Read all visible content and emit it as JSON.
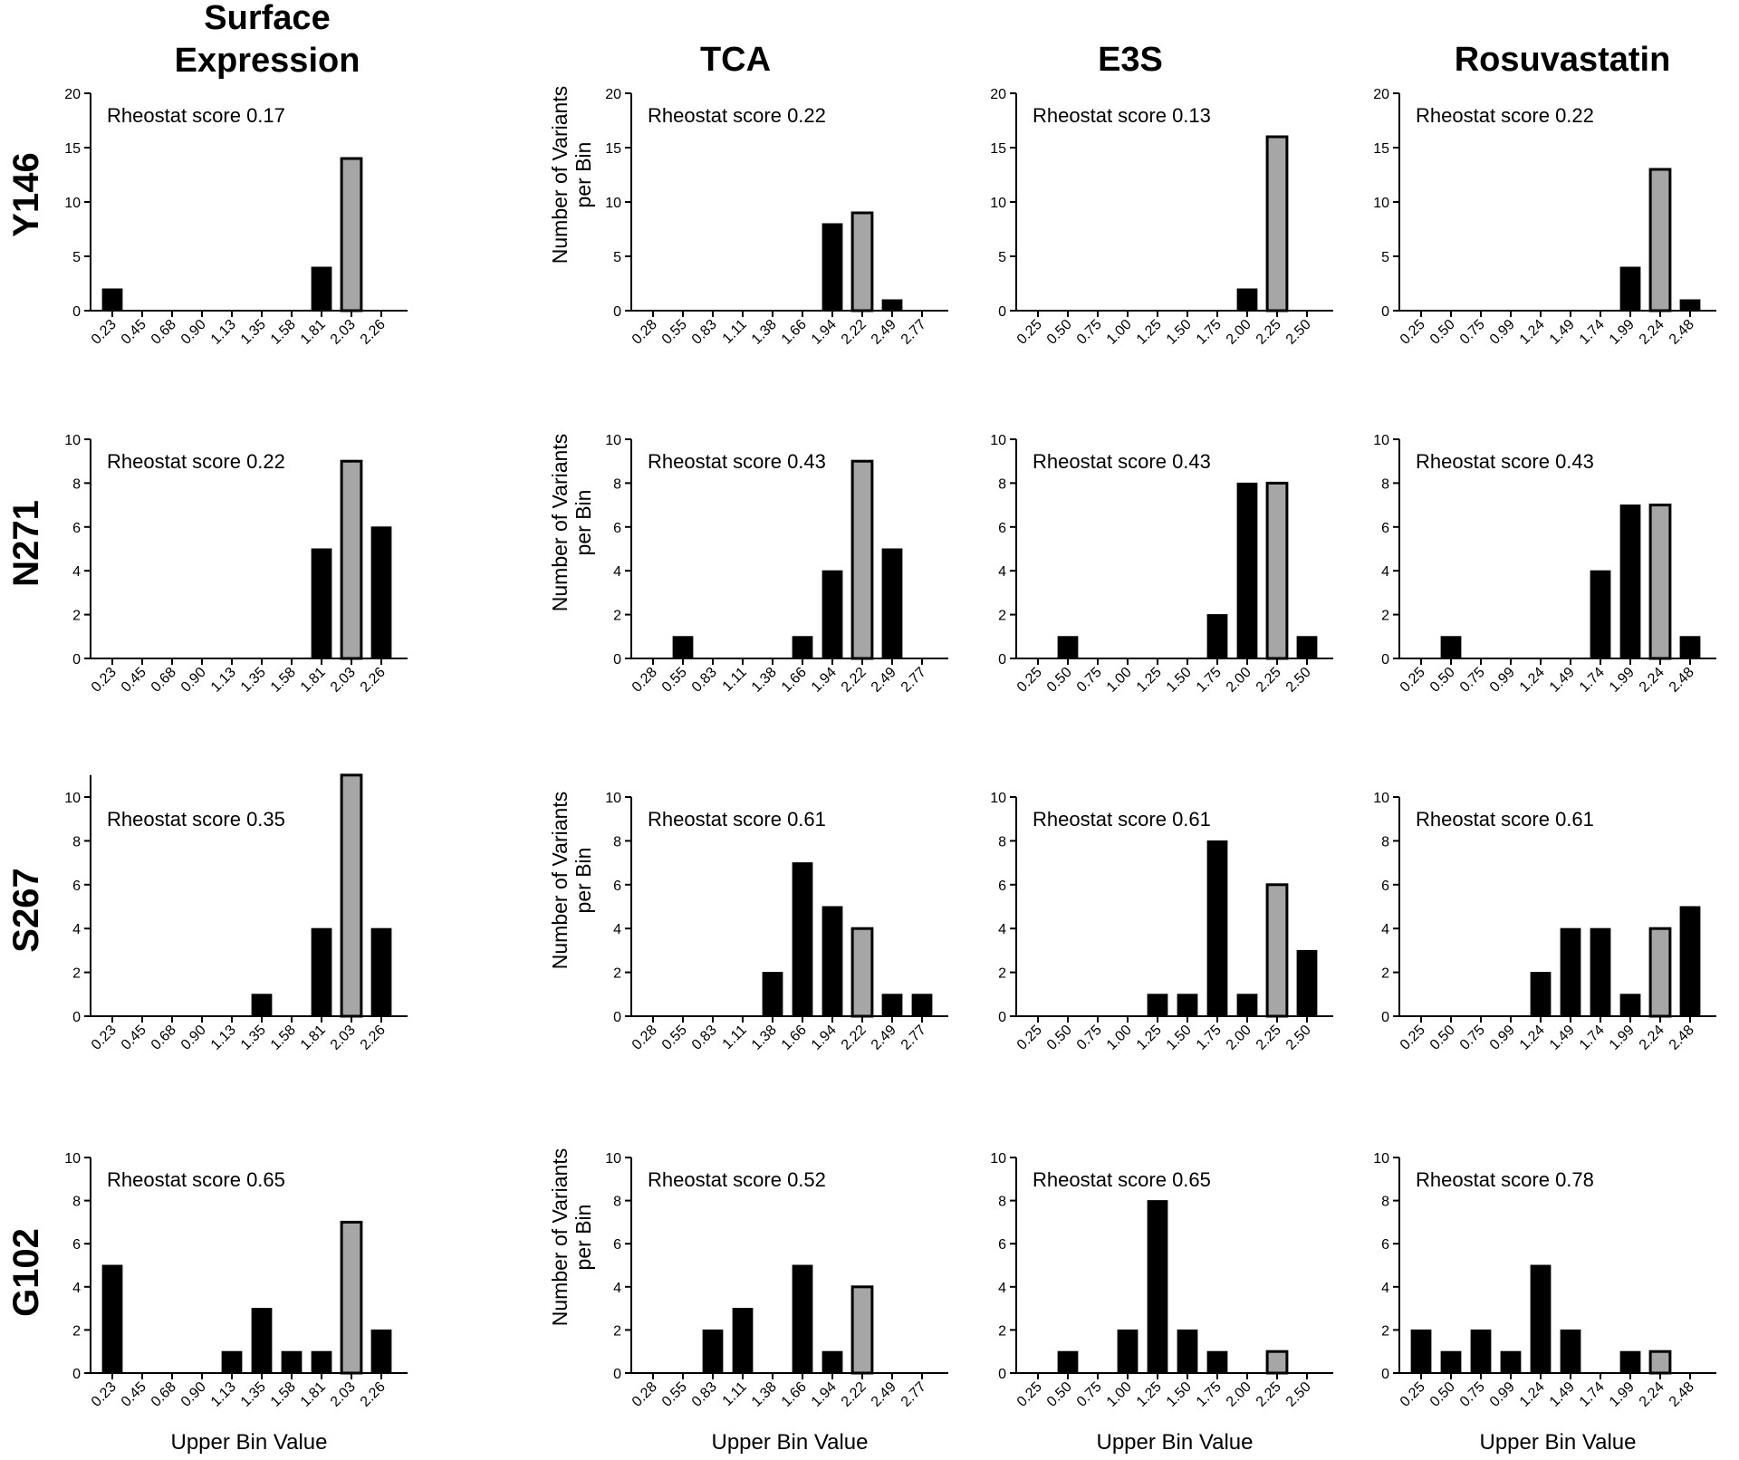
{
  "column_titles": [
    [
      "Surface",
      "Expression"
    ],
    [
      "TCA"
    ],
    [
      "E3S"
    ],
    [
      "Rosuvastatin"
    ]
  ],
  "row_labels": [
    "Y146",
    "N271",
    "S267",
    "G102"
  ],
  "common_ylabel": [
    "Number of Variants",
    "per Bin"
  ],
  "common_xlabel": "Upper Bin Value",
  "colors": {
    "bar_fill": "#000000",
    "highlight_fill": "#a6a6a6",
    "axis": "#000000"
  },
  "chart_data": [
    {
      "type": "bar",
      "row": "Y146",
      "column": "Surface Expression",
      "annotation": "Rheostat score 0.17",
      "categories": [
        "0.23",
        "0.45",
        "0.68",
        "0.90",
        "1.13",
        "1.35",
        "1.58",
        "1.81",
        "2.03",
        "2.26"
      ],
      "values": [
        2,
        0,
        0,
        0,
        0,
        0,
        0,
        4,
        14,
        0
      ],
      "highlight_category": "2.03",
      "ylim": [
        0,
        20
      ],
      "yticks": [
        0,
        5,
        10,
        15,
        20
      ]
    },
    {
      "type": "bar",
      "row": "Y146",
      "column": "TCA",
      "annotation": "Rheostat score 0.22",
      "categories": [
        "0.28",
        "0.55",
        "0.83",
        "1.11",
        "1.38",
        "1.66",
        "1.94",
        "2.22",
        "2.49",
        "2.77"
      ],
      "values": [
        0,
        0,
        0,
        0,
        0,
        0,
        8,
        9,
        1,
        0
      ],
      "highlight_category": "2.22",
      "ylim": [
        0,
        20
      ],
      "yticks": [
        0,
        5,
        10,
        15,
        20
      ]
    },
    {
      "type": "bar",
      "row": "Y146",
      "column": "E3S",
      "annotation": "Rheostat score 0.13",
      "categories": [
        "0.25",
        "0.50",
        "0.75",
        "1.00",
        "1.25",
        "1.50",
        "1.75",
        "2.00",
        "2.25",
        "2.50"
      ],
      "values": [
        0,
        0,
        0,
        0,
        0,
        0,
        0,
        2,
        16,
        0
      ],
      "highlight_category": "2.25",
      "ylim": [
        0,
        20
      ],
      "yticks": [
        0,
        5,
        10,
        15,
        20
      ]
    },
    {
      "type": "bar",
      "row": "Y146",
      "column": "Rosuvastatin",
      "annotation": "Rheostat score 0.22",
      "categories": [
        "0.25",
        "0.50",
        "0.75",
        "0.99",
        "1.24",
        "1.49",
        "1.74",
        "1.99",
        "2.24",
        "2.48"
      ],
      "values": [
        0,
        0,
        0,
        0,
        0,
        0,
        0,
        4,
        13,
        1
      ],
      "highlight_category": "2.24",
      "ylim": [
        0,
        20
      ],
      "yticks": [
        0,
        5,
        10,
        15,
        20
      ]
    },
    {
      "type": "bar",
      "row": "N271",
      "column": "Surface Expression",
      "annotation": "Rheostat score 0.22",
      "categories": [
        "0.23",
        "0.45",
        "0.68",
        "0.90",
        "1.13",
        "1.35",
        "1.58",
        "1.81",
        "2.03",
        "2.26"
      ],
      "values": [
        0,
        0,
        0,
        0,
        0,
        0,
        0,
        5,
        9,
        6
      ],
      "highlight_category": "2.03",
      "ylim": [
        0,
        10
      ],
      "yticks": [
        0,
        2,
        4,
        6,
        8,
        10
      ]
    },
    {
      "type": "bar",
      "row": "N271",
      "column": "TCA",
      "annotation": "Rheostat score 0.43",
      "categories": [
        "0.28",
        "0.55",
        "0.83",
        "1.11",
        "1.38",
        "1.66",
        "1.94",
        "2.22",
        "2.49",
        "2.77"
      ],
      "values": [
        0,
        1,
        0,
        0,
        0,
        1,
        4,
        9,
        5,
        0
      ],
      "highlight_category": "2.22",
      "ylim": [
        0,
        10
      ],
      "yticks": [
        0,
        2,
        4,
        6,
        8,
        10
      ]
    },
    {
      "type": "bar",
      "row": "N271",
      "column": "E3S",
      "annotation": "Rheostat score 0.43",
      "categories": [
        "0.25",
        "0.50",
        "0.75",
        "1.00",
        "1.25",
        "1.50",
        "1.75",
        "2.00",
        "2.25",
        "2.50"
      ],
      "values": [
        0,
        1,
        0,
        0,
        0,
        0,
        2,
        8,
        8,
        1
      ],
      "highlight_category": "2.25",
      "ylim": [
        0,
        10
      ],
      "yticks": [
        0,
        2,
        4,
        6,
        8,
        10
      ]
    },
    {
      "type": "bar",
      "row": "N271",
      "column": "Rosuvastatin",
      "annotation": "Rheostat score 0.43",
      "categories": [
        "0.25",
        "0.50",
        "0.75",
        "0.99",
        "1.24",
        "1.49",
        "1.74",
        "1.99",
        "2.24",
        "2.48"
      ],
      "values": [
        0,
        1,
        0,
        0,
        0,
        0,
        4,
        7,
        7,
        1
      ],
      "highlight_category": "2.24",
      "ylim": [
        0,
        10
      ],
      "yticks": [
        0,
        2,
        4,
        6,
        8,
        10
      ]
    },
    {
      "type": "bar",
      "row": "S267",
      "column": "Surface Expression",
      "annotation": "Rheostat score 0.35",
      "categories": [
        "0.23",
        "0.45",
        "0.68",
        "0.90",
        "1.13",
        "1.35",
        "1.58",
        "1.81",
        "2.03",
        "2.26"
      ],
      "values": [
        0,
        0,
        0,
        0,
        0,
        1,
        0,
        4,
        11,
        4
      ],
      "highlight_category": "2.03",
      "ylim": [
        0,
        11
      ],
      "yticks": [
        0,
        2,
        4,
        6,
        8,
        10
      ]
    },
    {
      "type": "bar",
      "row": "S267",
      "column": "TCA",
      "annotation": "Rheostat score 0.61",
      "categories": [
        "0.28",
        "0.55",
        "0.83",
        "1.11",
        "1.38",
        "1.66",
        "1.94",
        "2.22",
        "2.49",
        "2.77"
      ],
      "values": [
        0,
        0,
        0,
        0,
        2,
        7,
        5,
        4,
        1,
        1
      ],
      "highlight_category": "2.22",
      "ylim": [
        0,
        10
      ],
      "yticks": [
        0,
        2,
        4,
        6,
        8,
        10
      ]
    },
    {
      "type": "bar",
      "row": "S267",
      "column": "E3S",
      "annotation": "Rheostat score 0.61",
      "categories": [
        "0.25",
        "0.50",
        "0.75",
        "1.00",
        "1.25",
        "1.50",
        "1.75",
        "2.00",
        "2.25",
        "2.50"
      ],
      "values": [
        0,
        0,
        0,
        0,
        1,
        1,
        8,
        1,
        6,
        3
      ],
      "highlight_category": "2.25",
      "ylim": [
        0,
        10
      ],
      "yticks": [
        0,
        2,
        4,
        6,
        8,
        10
      ]
    },
    {
      "type": "bar",
      "row": "S267",
      "column": "Rosuvastatin",
      "annotation": "Rheostat score 0.61",
      "categories": [
        "0.25",
        "0.50",
        "0.75",
        "0.99",
        "1.24",
        "1.49",
        "1.74",
        "1.99",
        "2.24",
        "2.48"
      ],
      "values": [
        0,
        0,
        0,
        0,
        2,
        4,
        4,
        1,
        4,
        5
      ],
      "highlight_category": "2.24",
      "ylim": [
        0,
        10
      ],
      "yticks": [
        0,
        2,
        4,
        6,
        8,
        10
      ]
    },
    {
      "type": "bar",
      "row": "G102",
      "column": "Surface Expression",
      "annotation": "Rheostat score 0.65",
      "categories": [
        "0.23",
        "0.45",
        "0.68",
        "0.90",
        "1.13",
        "1.35",
        "1.58",
        "1.81",
        "2.03",
        "2.26"
      ],
      "values": [
        5,
        0,
        0,
        0,
        1,
        3,
        1,
        1,
        7,
        2
      ],
      "highlight_category": "2.03",
      "ylim": [
        0,
        10
      ],
      "yticks": [
        0,
        2,
        4,
        6,
        8,
        10
      ]
    },
    {
      "type": "bar",
      "row": "G102",
      "column": "TCA",
      "annotation": "Rheostat score 0.52",
      "categories": [
        "0.28",
        "0.55",
        "0.83",
        "1.11",
        "1.38",
        "1.66",
        "1.94",
        "2.22",
        "2.49",
        "2.77"
      ],
      "values": [
        0,
        0,
        2,
        3,
        0,
        5,
        1,
        4,
        0,
        0
      ],
      "highlight_category": "2.22",
      "ylim": [
        0,
        10
      ],
      "yticks": [
        0,
        2,
        4,
        6,
        8,
        10
      ]
    },
    {
      "type": "bar",
      "row": "G102",
      "column": "E3S",
      "annotation": "Rheostat score 0.65",
      "categories": [
        "0.25",
        "0.50",
        "0.75",
        "1.00",
        "1.25",
        "1.50",
        "1.75",
        "2.00",
        "2.25",
        "2.50"
      ],
      "values": [
        0,
        1,
        0,
        2,
        8,
        2,
        1,
        0,
        1,
        0
      ],
      "highlight_category": "2.25",
      "ylim": [
        0,
        10
      ],
      "yticks": [
        0,
        2,
        4,
        6,
        8,
        10
      ]
    },
    {
      "type": "bar",
      "row": "G102",
      "column": "Rosuvastatin",
      "annotation": "Rheostat score 0.78",
      "categories": [
        "0.25",
        "0.50",
        "0.75",
        "0.99",
        "1.24",
        "1.49",
        "1.74",
        "1.99",
        "2.24",
        "2.48"
      ],
      "values": [
        2,
        1,
        2,
        1,
        5,
        2,
        0,
        1,
        1,
        0
      ],
      "highlight_category": "2.24",
      "ylim": [
        0,
        10
      ],
      "yticks": [
        0,
        2,
        4,
        6,
        8,
        10
      ]
    }
  ]
}
